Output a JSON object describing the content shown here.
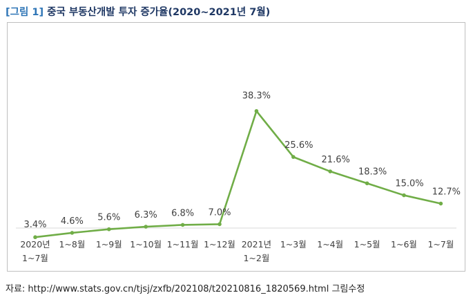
{
  "figure": {
    "label": "[그림 1]",
    "title": "중국 부동산개발 투자 증가율(2020~2021년 7월)",
    "source": "자료: http://www.stats.gov.cn/tjsj/zxfb/202108/t20210816_1820569.html 그림수정"
  },
  "colors": {
    "line": "#70ad47",
    "text": "#404040",
    "axis": "#d9d9d9",
    "title": "#1f3864",
    "label": "#2e75b6"
  },
  "chart_data": {
    "type": "line",
    "title": "중국 부동산개발 투자 증가율(2020~2021년 7월)",
    "xlabel": "",
    "ylabel": "",
    "grid": false,
    "legend": "none",
    "categories": [
      [
        "2020년",
        "1~7월"
      ],
      [
        "1~8월"
      ],
      [
        "1~9월"
      ],
      [
        "1~10월"
      ],
      [
        "1~11월"
      ],
      [
        "1~12월"
      ],
      [
        "2021년",
        "1~2월"
      ],
      [
        "1~3월"
      ],
      [
        "1~4월"
      ],
      [
        "1~5월"
      ],
      [
        "1~6월"
      ],
      [
        "1~7월"
      ]
    ],
    "values": [
      3.4,
      4.6,
      5.6,
      6.3,
      6.8,
      7.0,
      38.3,
      25.6,
      21.6,
      18.3,
      15.0,
      12.7
    ],
    "data_labels": [
      "3.4%",
      "4.6%",
      "5.6%",
      "6.3%",
      "6.8%",
      "7.0%",
      "38.3%",
      "25.6%",
      "21.6%",
      "18.3%",
      "15.0%",
      "12.7%"
    ],
    "unit": "%"
  }
}
